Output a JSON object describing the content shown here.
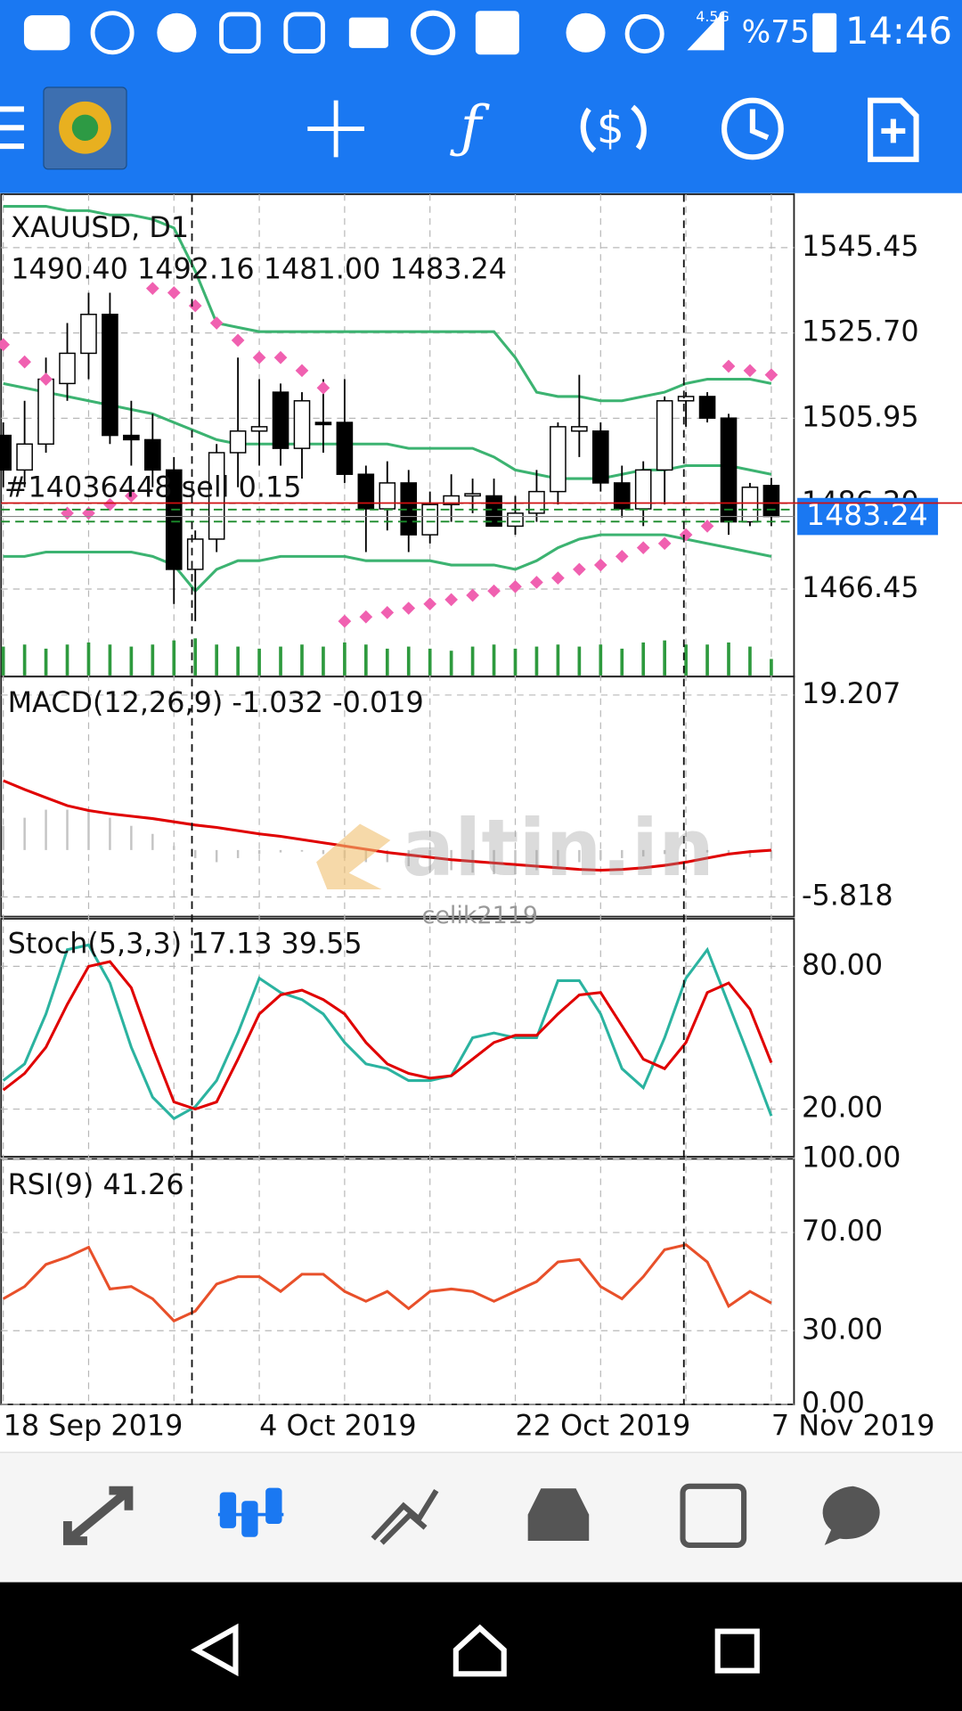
{
  "status_bar": {
    "network": "4.5G",
    "battery": "%75",
    "time": "14:46"
  },
  "chart": {
    "symbol": "XAUUSD, D1",
    "ohlc": "1490.40 1492.16 1481.00 1483.24",
    "order": "#14036448 sell 0.15",
    "current_price": 1483.24,
    "categories": [
      "18 Sep 2019",
      null,
      null,
      null,
      null,
      null,
      null,
      null,
      null,
      null,
      null,
      null,
      "4 Oct 2019",
      null,
      null,
      null,
      null,
      null,
      null,
      null,
      null,
      null,
      null,
      null,
      "22 Oct 2019",
      null,
      null,
      null,
      null,
      null,
      null,
      null,
      null,
      null,
      null,
      null,
      "7 Nov 2019"
    ],
    "main": {
      "type": "candlestick",
      "ylim": [
        1446.2,
        1557.8
      ],
      "yticks": [
        1545.45,
        {
          "value": 1525.7,
          "label": "1525.70"
        },
        1505.95,
        {
          "value": 1486.2,
          "label": "1486.20"
        },
        1466.45
      ],
      "grid": true,
      "up_color": "#ffffff",
      "down_color": "#000000",
      "open": [
        1502,
        1494,
        1500,
        1514,
        1521,
        1530,
        1502,
        1501,
        1494,
        1471,
        1478,
        1498,
        1503,
        1512,
        1499,
        1505,
        1505,
        1493,
        1485,
        1491,
        1479,
        1486,
        1488,
        1488,
        1481,
        1484,
        1489,
        1503,
        1503,
        1491,
        1485,
        1494,
        1510,
        1511,
        1506,
        1482,
        1490.4
      ],
      "high": [
        1505,
        1510,
        1520,
        1528,
        1535,
        1535,
        1510,
        1507,
        1497,
        1480,
        1500,
        1520,
        1515,
        1514,
        1512,
        1515,
        1515,
        1495,
        1496,
        1494,
        1489,
        1493,
        1492,
        1492,
        1488,
        1494,
        1505,
        1516,
        1505,
        1495,
        1496,
        1511,
        1512,
        1512,
        1507,
        1491,
        1492.16
      ],
      "low": [
        1490,
        1490,
        1498,
        1510,
        1515,
        1500,
        1495,
        1490,
        1463,
        1459,
        1475,
        1490,
        1495,
        1495,
        1492,
        1498,
        1491,
        1475,
        1480,
        1475,
        1477,
        1482,
        1484,
        1481,
        1479,
        1482,
        1486,
        1497,
        1489,
        1483,
        1481,
        1486,
        1504,
        1505,
        1479,
        1481,
        1481.0
      ],
      "close": [
        1494,
        1500,
        1515,
        1521,
        1530,
        1502,
        1501,
        1494,
        1471,
        1478,
        1498,
        1503,
        1504,
        1499,
        1510,
        1504.5,
        1493,
        1485,
        1491,
        1479,
        1486,
        1488,
        1488.5,
        1481,
        1484,
        1489,
        1504,
        1504,
        1491,
        1485,
        1494,
        1510,
        1511,
        1506,
        1482,
        1490,
        1483.24
      ],
      "bollinger": {
        "color": "#3cb371",
        "upper": [
          1555,
          1555,
          1555,
          1554,
          1554,
          1553,
          1553,
          1552,
          1550,
          1540,
          1528,
          1527,
          1526,
          1526,
          1526,
          1526,
          1526,
          1526,
          1526,
          1526,
          1526,
          1526,
          1526,
          1526,
          1520,
          1512,
          1511,
          1511,
          1510,
          1510,
          1511,
          1512,
          1514,
          1515,
          1515,
          1515,
          1514
        ],
        "middle": [
          1514,
          1513,
          1512,
          1511,
          1510,
          1509,
          1508,
          1507,
          1505,
          1503,
          1501,
          1500,
          1500,
          1500,
          1500,
          1500,
          1500,
          1500,
          1500,
          1499,
          1499,
          1499,
          1499,
          1497,
          1494,
          1493,
          1492,
          1492,
          1492,
          1493,
          1494,
          1494,
          1495,
          1495,
          1495,
          1494,
          1493
        ],
        "lower": [
          1474,
          1474,
          1475,
          1475,
          1475,
          1475,
          1475,
          1474,
          1472,
          1466,
          1471,
          1473,
          1473,
          1474,
          1474,
          1474,
          1474,
          1473,
          1473,
          1473,
          1473,
          1472,
          1472,
          1472,
          1471,
          1473,
          1476,
          1478,
          1479,
          1479,
          1479,
          1479,
          1478,
          1477,
          1476,
          1475,
          1474
        ]
      },
      "sar": {
        "color": "#f060b0",
        "values": [
          1523,
          1519,
          1515,
          1484,
          1484,
          1486,
          1488,
          1536,
          1535,
          1532,
          1528,
          1524,
          1520,
          1520,
          1517,
          1513,
          1459,
          1460,
          1461,
          1462,
          1463,
          1464,
          1465,
          1466,
          1467,
          1468,
          1469,
          1471,
          1472,
          1474,
          1476,
          1477,
          1479,
          1481,
          1518,
          1517,
          1516
        ]
      },
      "volume": {
        "color": "#2e9a3e",
        "values": [
          28,
          30,
          26,
          30,
          32,
          30,
          28,
          30,
          34,
          36,
          30,
          28,
          26,
          28,
          30,
          28,
          32,
          30,
          26,
          28,
          26,
          24,
          28,
          30,
          26,
          28,
          30,
          28,
          30,
          26,
          32,
          34,
          30,
          30,
          32,
          28,
          16
        ]
      }
    },
    "macd": {
      "label": "MACD(12,26,9) -1.032 -0.019",
      "ylim": [
        -8.25,
        21.5
      ],
      "yticks": [
        19.207,
        -5.818
      ],
      "histogram": {
        "color": "#c4c4c4",
        "values": [
          3,
          4,
          5,
          5,
          5,
          4,
          3,
          2,
          0.5,
          -1,
          -1.5,
          -1,
          -0.5,
          -0.3,
          -0.2,
          -0.5,
          -1,
          -1.5,
          -1.5,
          -2,
          -2.5,
          -2.5,
          -2.8,
          -3,
          -3,
          -2.5,
          -2,
          -1.5,
          -1.2,
          -1,
          -0.8,
          -0.5,
          -0.2,
          -0.3,
          -0.6,
          -0.9,
          -1.032
        ]
      },
      "signal": {
        "color": "#e00000",
        "values": [
          8.6,
          7.5,
          6.5,
          5.5,
          4.9,
          4.5,
          4.2,
          3.9,
          3.5,
          3.1,
          2.8,
          2.4,
          2.0,
          1.7,
          1.3,
          0.9,
          0.5,
          0.1,
          -0.3,
          -0.6,
          -0.9,
          -1.2,
          -1.4,
          -1.6,
          -1.8,
          -2.0,
          -2.2,
          -2.4,
          -2.5,
          -2.4,
          -2.2,
          -1.9,
          -1.5,
          -1.0,
          -0.5,
          -0.2,
          -0.019
        ]
      }
    },
    "stoch": {
      "label": "Stoch(5,3,3) 17.13 39.55",
      "ylim": [
        0,
        100
      ],
      "yticks": [
        {
          "value": 80,
          "label": "80.00"
        },
        {
          "value": 20,
          "label": "20.00"
        }
      ],
      "main": {
        "color": "#2bb3a0",
        "values": [
          32,
          39,
          60,
          87,
          89,
          73,
          46,
          25,
          16,
          21,
          32,
          52,
          75,
          69,
          66,
          60,
          48,
          39,
          37,
          32,
          32,
          34,
          50,
          52,
          50,
          50,
          74,
          74,
          60,
          37,
          29,
          50,
          75,
          87,
          64,
          41,
          17.13
        ]
      },
      "signal": {
        "color": "#e00000",
        "values": [
          28,
          35,
          46,
          64,
          80,
          82,
          71,
          46,
          23,
          20,
          23,
          41,
          60,
          68,
          70,
          66,
          60,
          48,
          39,
          35,
          33,
          34,
          41,
          48,
          51,
          51,
          60,
          68,
          69,
          55,
          41,
          37,
          48,
          69,
          73,
          62,
          39.55
        ]
      }
    },
    "rsi": {
      "label": "RSI(9) 41.26",
      "ylim": [
        0,
        100
      ],
      "yticks": [
        {
          "value": 100,
          "label": "100.00"
        },
        {
          "value": 70,
          "label": "70.00"
        },
        {
          "value": 30,
          "label": "30.00"
        },
        {
          "value": 0,
          "label": "0.00"
        }
      ],
      "line": {
        "color": "#e8502a",
        "values": [
          43,
          48,
          57,
          60,
          64,
          47,
          48,
          43,
          34,
          38,
          49,
          52,
          52,
          46,
          53,
          53,
          46,
          42,
          46,
          39,
          46,
          47,
          46,
          42,
          46,
          50,
          58,
          59,
          48,
          43,
          52,
          63,
          65,
          58,
          40,
          46,
          41.26
        ]
      }
    },
    "watermark": {
      "brand": "altin.in",
      "user": "celik2119"
    }
  }
}
